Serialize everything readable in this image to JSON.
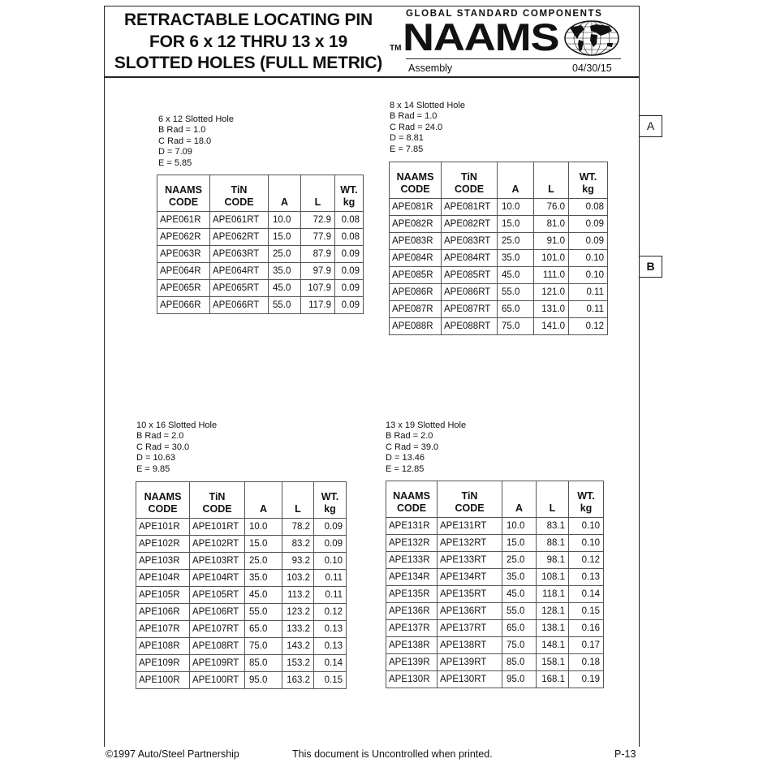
{
  "header": {
    "title_lines": [
      "RETRACTABLE LOCATING PIN",
      "FOR 6 x 12 THRU 13 x 19",
      "SLOTTED HOLES (FULL METRIC)"
    ],
    "tm": "TM",
    "logo_tagline": "GLOBAL STANDARD COMPONENTS",
    "logo_text": "NAAMS",
    "section": "Assembly",
    "date": "04/30/15"
  },
  "tabs": [
    "A",
    "B"
  ],
  "columns": [
    "NAAMS\nCODE",
    "TiN\nCODE",
    "A",
    "L",
    "WT.\nkg"
  ],
  "tables": [
    {
      "spec": [
        "6 x 12 Slotted Hole",
        "B Rad = 1.0",
        "C Rad = 18.0",
        "D = 7.09",
        "E = 5.85"
      ],
      "rows": [
        [
          "APE061R",
          "APE061RT",
          "10.0",
          "72.9",
          "0.08"
        ],
        [
          "APE062R",
          "APE062RT",
          "15.0",
          "77.9",
          "0.08"
        ],
        [
          "APE063R",
          "APE063RT",
          "25.0",
          "87.9",
          "0.09"
        ],
        [
          "APE064R",
          "APE064RT",
          "35.0",
          "97.9",
          "0.09"
        ],
        [
          "APE065R",
          "APE065RT",
          "45.0",
          "107.9",
          "0.09"
        ],
        [
          "APE066R",
          "APE066RT",
          "55.0",
          "117.9",
          "0.09"
        ]
      ]
    },
    {
      "spec": [
        "8 x 14 Slotted Hole",
        "B Rad = 1.0",
        "C Rad = 24.0",
        "D = 8.81",
        "E = 7.85"
      ],
      "rows": [
        [
          "APE081R",
          "APE081RT",
          "10.0",
          "76.0",
          "0.08"
        ],
        [
          "APE082R",
          "APE082RT",
          "15.0",
          "81.0",
          "0.09"
        ],
        [
          "APE083R",
          "APE083RT",
          "25.0",
          "91.0",
          "0.09"
        ],
        [
          "APE084R",
          "APE084RT",
          "35.0",
          "101.0",
          "0.10"
        ],
        [
          "APE085R",
          "APE085RT",
          "45.0",
          "111.0",
          "0.10"
        ],
        [
          "APE086R",
          "APE086RT",
          "55.0",
          "121.0",
          "0.11"
        ],
        [
          "APE087R",
          "APE087RT",
          "65.0",
          "131.0",
          "0.11"
        ],
        [
          "APE088R",
          "APE088RT",
          "75.0",
          "141.0",
          "0.12"
        ]
      ]
    },
    {
      "spec": [
        "10 x 16 Slotted Hole",
        "B Rad = 2.0",
        "C Rad = 30.0",
        "D = 10.63",
        "E = 9.85"
      ],
      "rows": [
        [
          "APE101R",
          "APE101RT",
          "10.0",
          "78.2",
          "0.09"
        ],
        [
          "APE102R",
          "APE102RT",
          "15.0",
          "83.2",
          "0.09"
        ],
        [
          "APE103R",
          "APE103RT",
          "25.0",
          "93.2",
          "0.10"
        ],
        [
          "APE104R",
          "APE104RT",
          "35.0",
          "103.2",
          "0.11"
        ],
        [
          "APE105R",
          "APE105RT",
          "45.0",
          "113.2",
          "0.11"
        ],
        [
          "APE106R",
          "APE106RT",
          "55.0",
          "123.2",
          "0.12"
        ],
        [
          "APE107R",
          "APE107RT",
          "65.0",
          "133.2",
          "0.13"
        ],
        [
          "APE108R",
          "APE108RT",
          "75.0",
          "143.2",
          "0.13"
        ],
        [
          "APE109R",
          "APE109RT",
          "85.0",
          "153.2",
          "0.14"
        ],
        [
          "APE100R",
          "APE100RT",
          "95.0",
          "163.2",
          "0.15"
        ]
      ]
    },
    {
      "spec": [
        "13 x 19 Slotted Hole",
        "B Rad = 2.0",
        "C Rad = 39.0",
        "D = 13.46",
        "E = 12.85"
      ],
      "rows": [
        [
          "APE131R",
          "APE131RT",
          "10.0",
          "83.1",
          "0.10"
        ],
        [
          "APE132R",
          "APE132RT",
          "15.0",
          "88.1",
          "0.10"
        ],
        [
          "APE133R",
          "APE133RT",
          "25.0",
          "98.1",
          "0.12"
        ],
        [
          "APE134R",
          "APE134RT",
          "35.0",
          "108.1",
          "0.13"
        ],
        [
          "APE135R",
          "APE135RT",
          "45.0",
          "118.1",
          "0.14"
        ],
        [
          "APE136R",
          "APE136RT",
          "55.0",
          "128.1",
          "0.15"
        ],
        [
          "APE137R",
          "APE137RT",
          "65.0",
          "138.1",
          "0.16"
        ],
        [
          "APE138R",
          "APE138RT",
          "75.0",
          "148.1",
          "0.17"
        ],
        [
          "APE139R",
          "APE139RT",
          "85.0",
          "158.1",
          "0.18"
        ],
        [
          "APE130R",
          "APE130RT",
          "95.0",
          "168.1",
          "0.19"
        ]
      ]
    }
  ],
  "footer": {
    "copyright": "©1997 Auto/Steel Partnership",
    "notice": "This document is Uncontrolled when printed.",
    "page": "P-13"
  }
}
